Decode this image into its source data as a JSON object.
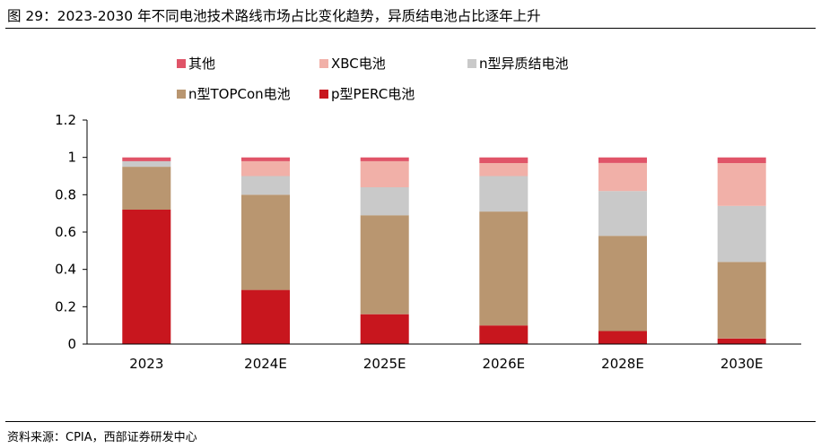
{
  "header": {
    "title": "图 29：2023-2030 年不同电池技术路线市场占比变化趋势，异质结电池占比逐年上升"
  },
  "footer": {
    "source": "资料来源：CPIA，西部证券研发中心"
  },
  "chart_data": {
    "type": "bar",
    "stacked": true,
    "categories": [
      "2023",
      "2024E",
      "2025E",
      "2026E",
      "2028E",
      "2030E"
    ],
    "series": [
      {
        "name": "p型PERC电池",
        "color": "#c8161e",
        "values": [
          0.72,
          0.29,
          0.16,
          0.1,
          0.07,
          0.03
        ]
      },
      {
        "name": "n型TOPCon电池",
        "color": "#b99670",
        "values": [
          0.23,
          0.51,
          0.53,
          0.61,
          0.51,
          0.41
        ]
      },
      {
        "name": "n型异质结电池",
        "color": "#c9c9c9",
        "values": [
          0.03,
          0.1,
          0.15,
          0.19,
          0.24,
          0.3
        ]
      },
      {
        "name": "XBC电池",
        "color": "#f1b0a8",
        "values": [
          0.0,
          0.08,
          0.14,
          0.07,
          0.15,
          0.23
        ]
      },
      {
        "name": "其他",
        "color": "#e05468",
        "values": [
          0.02,
          0.02,
          0.02,
          0.03,
          0.03,
          0.03
        ]
      }
    ],
    "legend_order": [
      "其他",
      "XBC电池",
      "n型异质结电池",
      "n型TOPCon电池",
      "p型PERC电池"
    ],
    "ylim": [
      0,
      1.2
    ],
    "yticks": [
      "0",
      "0.2",
      "0.4",
      "0.6",
      "0.8",
      "1",
      "1.2"
    ],
    "grid": false,
    "legend_position": "top-left"
  }
}
